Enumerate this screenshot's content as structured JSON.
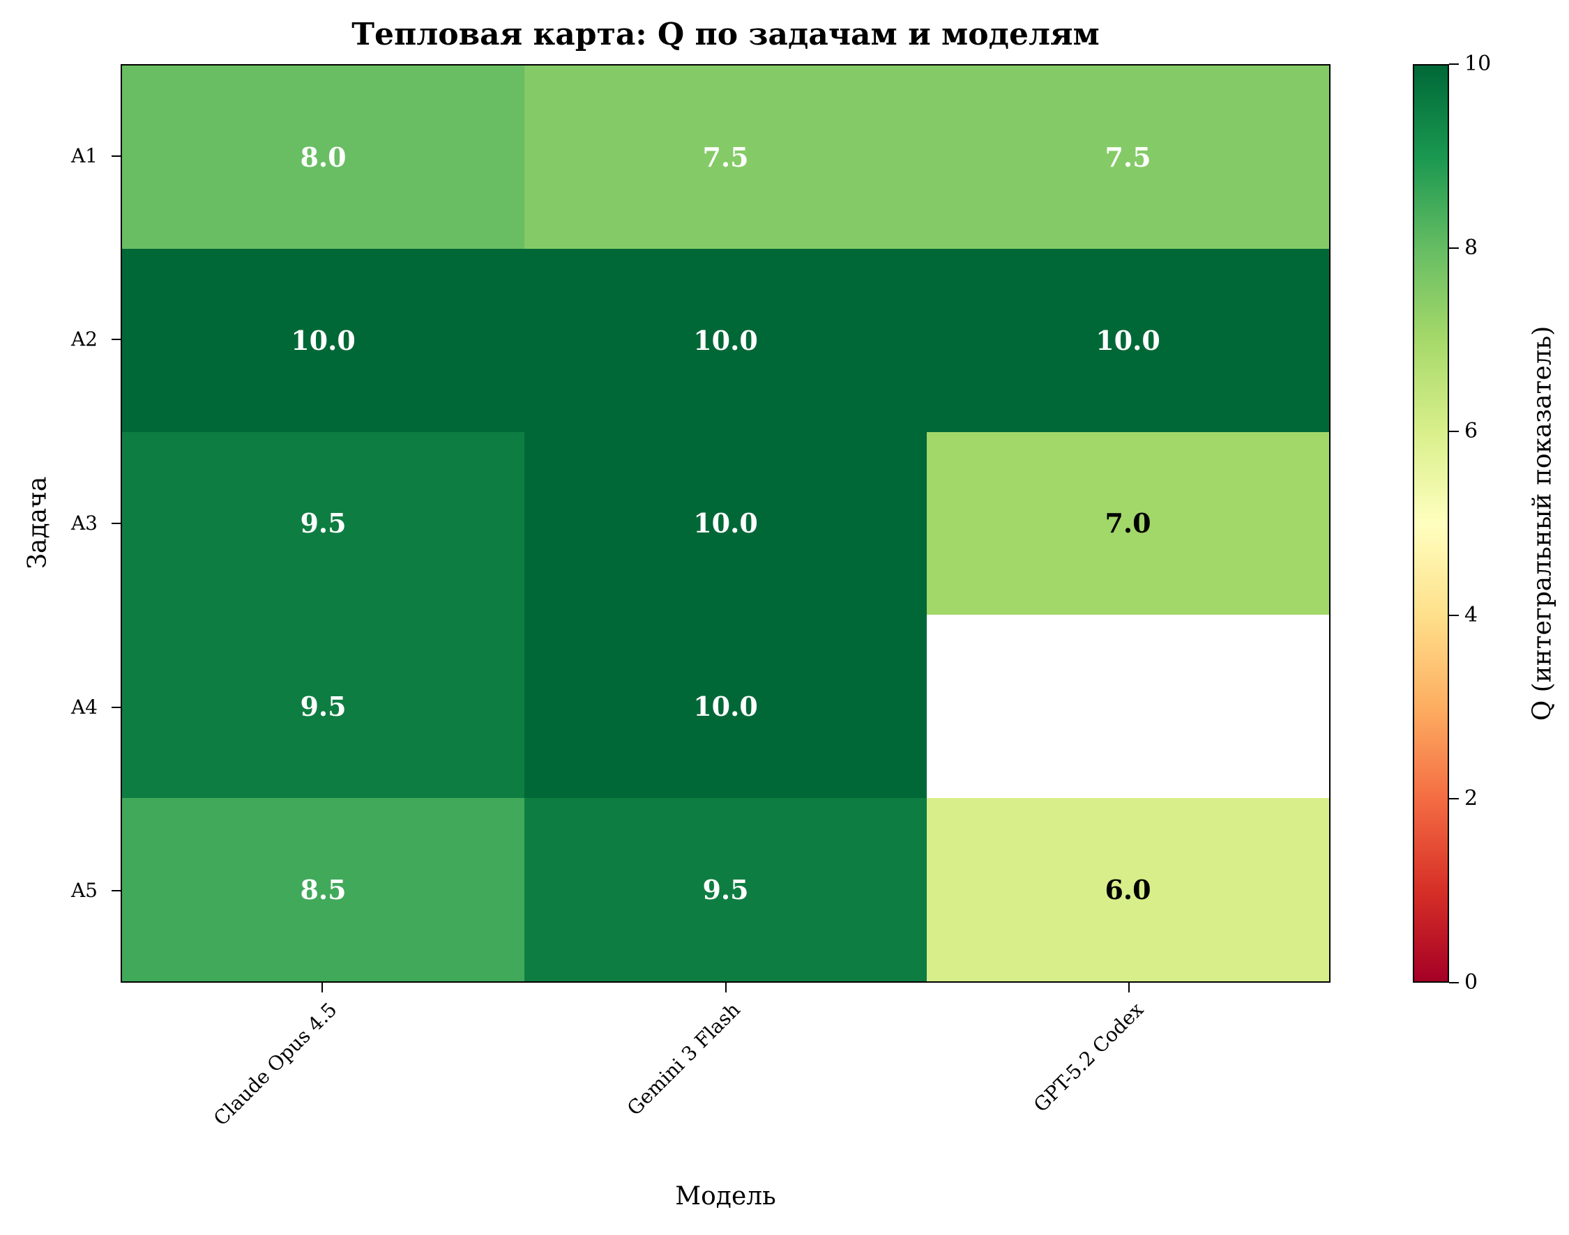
{
  "chart_data": {
    "type": "heatmap",
    "title": "Тепловая карта: Q по задачам и моделям",
    "xlabel": "Модель",
    "ylabel": "Задача",
    "x": [
      "Claude Opus 4.5",
      "Gemini 3 Flash",
      "GPT-5.2 Codex"
    ],
    "y": [
      "A1",
      "A2",
      "A3",
      "A4",
      "A5"
    ],
    "values": [
      [
        8.0,
        7.5,
        7.5
      ],
      [
        10.0,
        10.0,
        10.0
      ],
      [
        9.5,
        10.0,
        7.0
      ],
      [
        9.5,
        10.0,
        null
      ],
      [
        8.5,
        9.5,
        6.0
      ]
    ],
    "value_labels": [
      [
        "8.0",
        "7.5",
        "7.5"
      ],
      [
        "10.0",
        "10.0",
        "10.0"
      ],
      [
        "9.5",
        "10.0",
        "7.0"
      ],
      [
        "9.5",
        "10.0",
        ""
      ],
      [
        "8.5",
        "9.5",
        "6.0"
      ]
    ],
    "colormap": "RdYlGn",
    "vmin": 0,
    "vmax": 10,
    "colorbar": {
      "label": "Q (интегральный показатель)",
      "ticks": [
        "0",
        "2",
        "4",
        "6",
        "8",
        "10"
      ]
    },
    "cell_colors": [
      [
        "#69be63",
        "#84ca66",
        "#84ca66"
      ],
      [
        "#006837",
        "#006837",
        "#006837"
      ],
      [
        "#0e7d42",
        "#006837",
        "#a2d76a"
      ],
      [
        "#0e7d42",
        "#006837",
        "#ffffff"
      ],
      [
        "#41a95a",
        "#0e7d42",
        "#d8ee8a"
      ]
    ],
    "text_colors": [
      [
        "#ffffff",
        "#ffffff",
        "#ffffff"
      ],
      [
        "#ffffff",
        "#ffffff",
        "#ffffff"
      ],
      [
        "#ffffff",
        "#ffffff",
        "#000000"
      ],
      [
        "#ffffff",
        "#ffffff",
        "#000000"
      ],
      [
        "#ffffff",
        "#ffffff",
        "#000000"
      ]
    ]
  }
}
